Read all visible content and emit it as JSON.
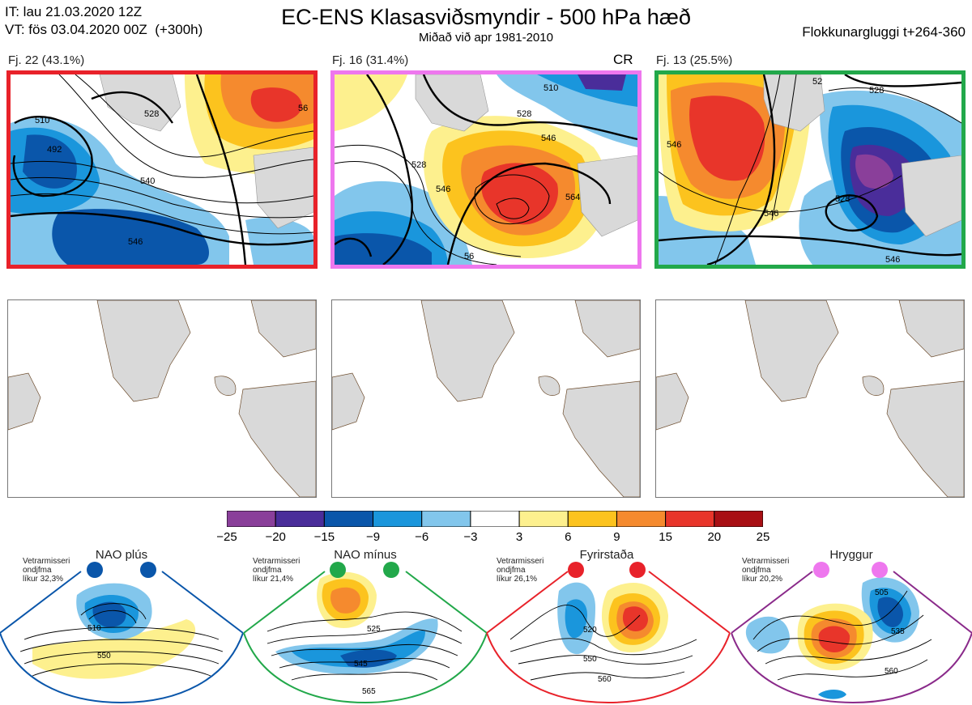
{
  "header": {
    "it_line": "IT: lau 21.03.2020 12Z",
    "vt_line": "VT: fös 03.04.2020 00Z  (+300h)",
    "title": "EC-ENS Klasasviðsmyndir - 500 hPa hæð",
    "subtitle": "Miðað við apr 1981-2010",
    "window": "Flokkunargluggi t+264-360"
  },
  "clusters": [
    {
      "label": "Fj. 22 (43.1%)",
      "border_color": "#e8222a",
      "tag": "",
      "contours": [
        "510",
        "492",
        "528",
        "546",
        "540",
        "56"
      ]
    },
    {
      "label": "Fj. 16 (31.4%)",
      "border_color": "#ee77ee",
      "tag": "CR",
      "contours": [
        "528",
        "546",
        "528",
        "546",
        "564",
        "56",
        "510"
      ]
    },
    {
      "label": "Fj. 13 (25.5%)",
      "border_color": "#22a84a",
      "tag": "",
      "contours": [
        "528",
        "546",
        "546",
        "528",
        "546",
        "52"
      ]
    }
  ],
  "colorbar": {
    "ticks": [
      "−25",
      "−20",
      "−15",
      "−9",
      "−6",
      "−3",
      "3",
      "6",
      "9",
      "15",
      "20",
      "25"
    ],
    "colors": [
      "#8a3f9a",
      "#4a2d9a",
      "#0a56aa",
      "#1a96dc",
      "#82c6ec",
      "#ffffff",
      "#fdf08e",
      "#fcc31e",
      "#f58a2e",
      "#e8352a",
      "#a80f14"
    ]
  },
  "regimes": [
    {
      "name": "NAO plús",
      "info": "Vetrarmisseri\nondjfma\nlíkur 32,3%",
      "color": "#0a56aa",
      "contours": [
        "510",
        "550"
      ]
    },
    {
      "name": "NAO mínus",
      "info": "Vetrarmisseri\nondjfma\nlíkur 21,4%",
      "color": "#22a84a",
      "contours": [
        "525",
        "545",
        "565"
      ]
    },
    {
      "name": "Fyrirstaða",
      "info": "Vetrarmisseri\nondjfma\nlíkur 26,1%",
      "color": "#e8222a",
      "contours": [
        "520",
        "550",
        "560"
      ]
    },
    {
      "name": "Hryggur",
      "info": "Vetrarmisseri\nondjfma\nlíkur 20,2%",
      "color": "#ee77ee",
      "contours": [
        "505",
        "535",
        "560"
      ]
    }
  ]
}
